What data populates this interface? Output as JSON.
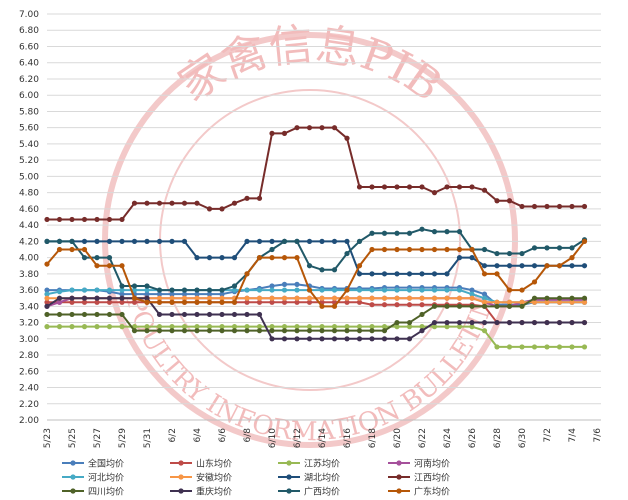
{
  "chart_data": {
    "type": "line",
    "watermark": [
      "家禽信息PIB",
      "POULTRY INFORMATION BULLETIN"
    ],
    "categories": [
      "5/23",
      null,
      "5/25",
      null,
      "5/27",
      null,
      "5/29",
      null,
      "5/31",
      null,
      "6/2",
      null,
      "6/4",
      null,
      "6/6",
      null,
      "6/8",
      null,
      "6/10",
      null,
      "6/12",
      null,
      "6/14",
      null,
      "6/16",
      null,
      "6/18",
      null,
      "6/20",
      null,
      "6/22",
      null,
      "6/24",
      null,
      "6/26",
      null,
      "6/28",
      null,
      "6/30",
      null,
      "7/2",
      null,
      "7/4",
      null,
      "7/6"
    ],
    "ylim": [
      2,
      7
    ],
    "yticks": [
      {
        "value": 2,
        "label": "2.00"
      },
      {
        "value": 2.2,
        "label": "2.20"
      },
      {
        "value": 2.4,
        "label": "2.40"
      },
      {
        "value": 2.6,
        "label": "2.60"
      },
      {
        "value": 2.8,
        "label": "2.80"
      },
      {
        "value": 3,
        "label": "3.00"
      },
      {
        "value": 3.2,
        "label": "3.20"
      },
      {
        "value": 3.4,
        "label": "3.40"
      },
      {
        "value": 3.6,
        "label": "3.60"
      },
      {
        "value": 3.8,
        "label": "3.80"
      },
      {
        "value": 4,
        "label": "4.00"
      },
      {
        "value": 4.2,
        "label": "4.20"
      },
      {
        "value": 4.4,
        "label": "4.40"
      },
      {
        "value": 4.6,
        "label": "4.60"
      },
      {
        "value": 4.8,
        "label": "4.80"
      },
      {
        "value": 5,
        "label": "5.00"
      },
      {
        "value": 5.2,
        "label": "5.20"
      },
      {
        "value": 5.4,
        "label": "5.40"
      },
      {
        "value": 5.6,
        "label": "5.60"
      },
      {
        "value": 5.8,
        "label": "5.80"
      },
      {
        "value": 6,
        "label": "6.00"
      },
      {
        "value": 6.2,
        "label": "6.20"
      },
      {
        "value": 6.4,
        "label": "6.40"
      },
      {
        "value": 6.6,
        "label": "6.60"
      },
      {
        "value": 6.8,
        "label": "6.80"
      },
      {
        "value": 7,
        "label": "7.00"
      }
    ],
    "grid": true,
    "legend": "bottom",
    "series": [
      {
        "name": "全国均价",
        "color": "#4a7ebb",
        "values": [
          3.6,
          3.6,
          3.6,
          3.6,
          3.6,
          3.58,
          3.55,
          3.55,
          3.55,
          3.55,
          3.55,
          3.55,
          3.55,
          3.55,
          3.55,
          3.58,
          3.6,
          3.62,
          3.65,
          3.67,
          3.67,
          3.65,
          3.62,
          3.62,
          3.62,
          3.62,
          3.62,
          3.63,
          3.63,
          3.63,
          3.63,
          3.63,
          3.63,
          3.63,
          3.6,
          3.55,
          3.42,
          3.42,
          3.42,
          3.45,
          3.45,
          3.45,
          3.45,
          3.45,
          null
        ]
      },
      {
        "name": "山东均价",
        "color": "#be4b48",
        "values": [
          3.45,
          3.45,
          3.45,
          3.45,
          3.45,
          3.45,
          3.45,
          3.45,
          3.45,
          3.45,
          3.45,
          3.45,
          3.45,
          3.45,
          3.45,
          3.45,
          3.45,
          3.45,
          3.45,
          3.45,
          3.45,
          3.45,
          3.45,
          3.45,
          3.45,
          3.45,
          3.42,
          3.42,
          3.42,
          3.42,
          3.42,
          3.42,
          3.42,
          3.42,
          3.42,
          3.4,
          3.2,
          3.2,
          3.2,
          3.2,
          3.2,
          3.2,
          3.2,
          3.2,
          null
        ]
      },
      {
        "name": "江苏均价",
        "color": "#98b954",
        "values": [
          3.15,
          3.15,
          3.15,
          3.15,
          3.15,
          3.15,
          3.15,
          3.15,
          3.15,
          3.15,
          3.15,
          3.15,
          3.15,
          3.15,
          3.15,
          3.15,
          3.15,
          3.15,
          3.15,
          3.15,
          3.15,
          3.15,
          3.15,
          3.15,
          3.15,
          3.15,
          3.15,
          3.15,
          3.15,
          3.15,
          3.15,
          3.15,
          3.15,
          3.15,
          3.15,
          3.1,
          2.9,
          2.9,
          2.9,
          2.9,
          2.9,
          2.9,
          2.9,
          2.9,
          null
        ]
      },
      {
        "name": "河南均价",
        "color": "#a5509b",
        "values": [
          3.4,
          3.45,
          3.5,
          3.5,
          3.5,
          3.5,
          3.5,
          3.5,
          3.5,
          3.5,
          3.5,
          3.5,
          3.5,
          3.5,
          3.5,
          3.5,
          3.5,
          3.5,
          3.5,
          3.5,
          3.5,
          3.5,
          3.5,
          3.5,
          3.5,
          3.5,
          3.5,
          3.5,
          3.5,
          3.5,
          3.5,
          3.5,
          3.5,
          3.5,
          3.5,
          3.45,
          3.4,
          3.4,
          3.45,
          3.48,
          3.48,
          3.48,
          3.48,
          3.48,
          null
        ]
      },
      {
        "name": "河北均价",
        "color": "#46aac5",
        "values": [
          3.55,
          3.58,
          3.6,
          3.6,
          3.6,
          3.6,
          3.6,
          3.6,
          3.6,
          3.6,
          3.6,
          3.6,
          3.6,
          3.6,
          3.6,
          3.6,
          3.6,
          3.6,
          3.6,
          3.6,
          3.6,
          3.6,
          3.6,
          3.6,
          3.6,
          3.6,
          3.6,
          3.6,
          3.6,
          3.6,
          3.6,
          3.6,
          3.6,
          3.6,
          3.55,
          3.5,
          3.45,
          3.45,
          3.45,
          3.45,
          3.45,
          3.45,
          3.45,
          3.45,
          null
        ]
      },
      {
        "name": "安徽均价",
        "color": "#f79646",
        "values": [
          3.5,
          3.5,
          3.5,
          3.5,
          3.5,
          3.5,
          3.5,
          3.5,
          3.5,
          3.5,
          3.5,
          3.5,
          3.5,
          3.5,
          3.5,
          3.5,
          3.5,
          3.5,
          3.5,
          3.5,
          3.5,
          3.5,
          3.5,
          3.5,
          3.5,
          3.5,
          3.5,
          3.5,
          3.5,
          3.5,
          3.5,
          3.5,
          3.5,
          3.5,
          3.5,
          3.45,
          3.45,
          3.45,
          3.45,
          3.45,
          3.45,
          3.45,
          3.45,
          3.45,
          null
        ]
      },
      {
        "name": "湖北均价",
        "color": "#1f4e79",
        "values": [
          4.2,
          4.2,
          4.2,
          4.2,
          4.2,
          4.2,
          4.2,
          4.2,
          4.2,
          4.2,
          4.2,
          4.2,
          4,
          4,
          4,
          4,
          4.2,
          4.2,
          4.2,
          4.2,
          4.2,
          4.2,
          4.2,
          4.2,
          4.2,
          3.8,
          3.8,
          3.8,
          3.8,
          3.8,
          3.8,
          3.8,
          3.8,
          4,
          4,
          3.9,
          3.9,
          3.9,
          3.9,
          3.9,
          3.9,
          3.9,
          3.9,
          3.9,
          null
        ]
      },
      {
        "name": "江西均价",
        "color": "#772c2a",
        "values": [
          4.47,
          4.47,
          4.47,
          4.47,
          4.47,
          4.47,
          4.47,
          4.67,
          4.67,
          4.67,
          4.67,
          4.67,
          4.67,
          4.6,
          4.6,
          4.67,
          4.73,
          4.73,
          5.53,
          5.53,
          5.6,
          5.6,
          5.6,
          5.6,
          5.47,
          4.87,
          4.87,
          4.87,
          4.87,
          4.87,
          4.87,
          4.8,
          4.87,
          4.87,
          4.87,
          4.83,
          4.7,
          4.7,
          4.63,
          4.63,
          4.63,
          4.63,
          4.63,
          4.63,
          null
        ]
      },
      {
        "name": "四川均价",
        "color": "#4f6228",
        "values": [
          3.3,
          3.3,
          3.3,
          3.3,
          3.3,
          3.3,
          3.3,
          3.1,
          3.1,
          3.1,
          3.1,
          3.1,
          3.1,
          3.1,
          3.1,
          3.1,
          3.1,
          3.1,
          3.1,
          3.1,
          3.1,
          3.1,
          3.1,
          3.1,
          3.1,
          3.1,
          3.1,
          3.1,
          3.2,
          3.2,
          3.3,
          3.4,
          3.4,
          3.4,
          3.4,
          3.4,
          3.4,
          3.4,
          3.4,
          3.5,
          3.5,
          3.5,
          3.5,
          3.5,
          null
        ]
      },
      {
        "name": "重庆均价",
        "color": "#3f3151",
        "values": [
          3.4,
          3.5,
          3.5,
          3.5,
          3.5,
          3.5,
          3.5,
          3.5,
          3.5,
          3.3,
          3.3,
          3.3,
          3.3,
          3.3,
          3.3,
          3.3,
          3.3,
          3.3,
          3,
          3,
          3,
          3,
          3,
          3,
          3,
          3,
          3,
          3,
          3,
          3,
          3.1,
          3.2,
          3.2,
          3.2,
          3.2,
          3.2,
          3.2,
          3.2,
          3.2,
          3.2,
          3.2,
          3.2,
          3.2,
          3.2,
          null
        ]
      },
      {
        "name": "广西均价",
        "color": "#215968",
        "values": [
          4.2,
          4.2,
          4.2,
          4,
          4,
          4,
          3.65,
          3.65,
          3.65,
          3.6,
          3.6,
          3.6,
          3.6,
          3.6,
          3.6,
          3.65,
          3.8,
          4,
          4.1,
          4.2,
          4.2,
          3.9,
          3.85,
          3.85,
          4.05,
          4.2,
          4.3,
          4.3,
          4.3,
          4.3,
          4.35,
          4.32,
          4.32,
          4.32,
          4.1,
          4.1,
          4.05,
          4.05,
          4.05,
          4.12,
          4.12,
          4.12,
          4.12,
          4.22,
          null
        ]
      },
      {
        "name": "广东均价",
        "color": "#b65708",
        "values": [
          3.92,
          4.1,
          4.1,
          4.1,
          3.9,
          3.9,
          3.9,
          3.5,
          3.45,
          3.45,
          3.45,
          3.45,
          3.45,
          3.45,
          3.45,
          3.45,
          3.8,
          4,
          4,
          4,
          4,
          3.6,
          3.4,
          3.4,
          3.6,
          3.9,
          4.1,
          4.1,
          4.1,
          4.1,
          4.1,
          4.1,
          4.1,
          4.1,
          4.1,
          3.8,
          3.8,
          3.6,
          3.6,
          3.7,
          3.9,
          3.9,
          4,
          4.2,
          null
        ]
      }
    ]
  }
}
